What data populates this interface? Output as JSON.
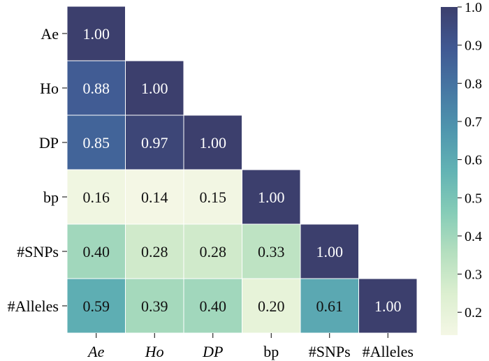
{
  "chart_data": {
    "type": "heatmap",
    "title": "",
    "xlabel": "",
    "ylabel": "",
    "rows": [
      "Ae",
      "Ho",
      "DP",
      "bp",
      "#SNPs",
      "#Alleles"
    ],
    "columns": [
      "Ae",
      "Ho",
      "DP",
      "bp",
      "#SNPs",
      "#Alleles"
    ],
    "italic_column_labels": [
      "Ae",
      "Ho",
      "DP"
    ],
    "mask": "upper-triangle",
    "values": [
      [
        1.0,
        null,
        null,
        null,
        null,
        null
      ],
      [
        0.88,
        1.0,
        null,
        null,
        null,
        null
      ],
      [
        0.85,
        0.97,
        1.0,
        null,
        null,
        null
      ],
      [
        0.16,
        0.14,
        0.15,
        1.0,
        null,
        null
      ],
      [
        0.4,
        0.28,
        0.28,
        0.33,
        1.0,
        null
      ],
      [
        0.59,
        0.39,
        0.4,
        0.2,
        0.61,
        1.0
      ]
    ],
    "colorbar": {
      "min": 0.14,
      "max": 1.0,
      "ticks": [
        "0.2",
        "0.3",
        "0.4",
        "0.5",
        "0.6",
        "0.7",
        "0.8",
        "0.9",
        "1.0"
      ],
      "colormap": [
        "#f4f7e5",
        "#dcefd0",
        "#b5dfbf",
        "#85ccb7",
        "#62b3b4",
        "#4f96ae",
        "#4677a3",
        "#405892",
        "#3c3f6d"
      ]
    }
  }
}
